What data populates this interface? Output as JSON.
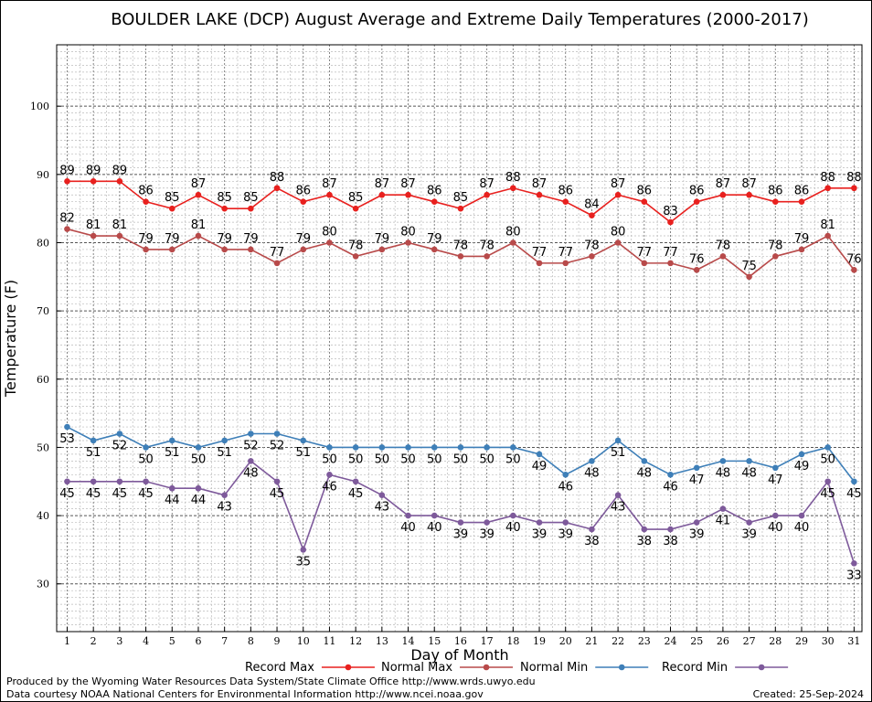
{
  "chart_data": {
    "type": "line",
    "title": "BOULDER LAKE (DCP) August Average and Extreme Daily Temperatures (2000-2017)",
    "xlabel": "Day of Month",
    "ylabel": "Temperature (F)",
    "x": [
      1,
      2,
      3,
      4,
      5,
      6,
      7,
      8,
      9,
      10,
      11,
      12,
      13,
      14,
      15,
      16,
      17,
      18,
      19,
      20,
      21,
      22,
      23,
      24,
      25,
      26,
      27,
      28,
      29,
      30,
      31
    ],
    "yticks": [
      30,
      40,
      50,
      60,
      70,
      80,
      90,
      100
    ],
    "xlim": [
      0.6,
      31.3
    ],
    "ylim": [
      23,
      109
    ],
    "grid": true,
    "legend_position": "bottom",
    "series": [
      {
        "name": "Record Max",
        "color": "#e8201e",
        "label_pos": "above",
        "values": [
          89,
          89,
          89,
          86,
          85,
          87,
          85,
          85,
          88,
          86,
          87,
          85,
          87,
          87,
          86,
          85,
          87,
          88,
          87,
          86,
          84,
          87,
          86,
          83,
          86,
          87,
          87,
          86,
          86,
          88,
          88
        ]
      },
      {
        "name": "Normal Max",
        "color": "#b84a4a",
        "label_pos": "above",
        "values": [
          82,
          81,
          81,
          79,
          79,
          81,
          79,
          79,
          77,
          79,
          80,
          78,
          79,
          80,
          79,
          78,
          78,
          80,
          77,
          77,
          78,
          80,
          77,
          77,
          76,
          78,
          75,
          78,
          79,
          81,
          76
        ]
      },
      {
        "name": "Normal Min",
        "color": "#3e7fb8",
        "label_pos": "below",
        "values": [
          53,
          51,
          52,
          50,
          51,
          50,
          51,
          52,
          52,
          51,
          50,
          50,
          50,
          50,
          50,
          50,
          50,
          50,
          49,
          46,
          48,
          51,
          48,
          46,
          47,
          48,
          48,
          47,
          49,
          50,
          45
        ]
      },
      {
        "name": "Record Min",
        "color": "#7e5a9b",
        "label_pos": "below",
        "values": [
          45,
          45,
          45,
          45,
          44,
          44,
          43,
          48,
          45,
          35,
          46,
          45,
          43,
          40,
          40,
          39,
          39,
          40,
          39,
          39,
          38,
          43,
          38,
          38,
          39,
          41,
          39,
          40,
          40,
          45,
          33
        ]
      }
    ]
  },
  "footer": {
    "produced_by": "Produced by the Wyoming Water Resources Data System/State Climate Office http://www.wrds.uwyo.edu",
    "data_courtesy": "Data courtesy NOAA National Centers for Environmental Information http://www.ncei.noaa.gov",
    "created": "Created:  25-Sep-2024"
  }
}
